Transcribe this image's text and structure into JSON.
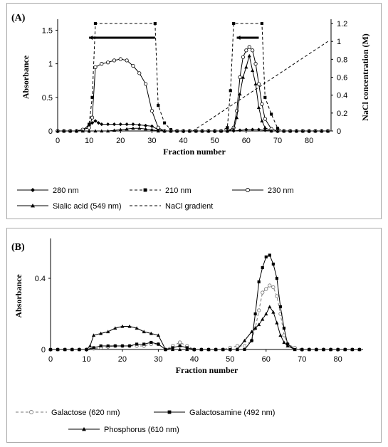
{
  "chart_data": [
    {
      "type": "line",
      "panel_label": "(A)",
      "xlabel": "Fraction number",
      "ylabel": "Absorbance",
      "y2label": "NaCl concentration (M)",
      "xlim": [
        0,
        87
      ],
      "xticks": [
        0,
        10,
        20,
        30,
        40,
        50,
        60,
        70,
        80
      ],
      "ylim": [
        0,
        1.6
      ],
      "yticks": [
        0,
        0.5,
        1,
        1.5
      ],
      "ytick_labels": [
        "0",
        "0.5",
        "1",
        "1.5"
      ],
      "y2lim": [
        0,
        1.2
      ],
      "y2ticks": [
        0,
        0.2,
        0.4,
        0.6,
        0.8,
        1,
        1.2
      ],
      "y2tick_labels": [
        "0",
        "0.2",
        "0.4",
        "0.6",
        "0.8",
        "1",
        "1.2"
      ],
      "grid": false,
      "legend_position": "bottom",
      "pooled_fractions": [
        [
          10,
          31
        ],
        [
          57,
          64
        ]
      ],
      "series": [
        {
          "name": "280 nm",
          "style": "solid",
          "marker": "diamond",
          "color": "#000000",
          "x": [
            0,
            2,
            4,
            6,
            8,
            10,
            11,
            12,
            13,
            14,
            16,
            18,
            20,
            22,
            24,
            26,
            28,
            30,
            32,
            34,
            36,
            38,
            40,
            42,
            44,
            46,
            48,
            50,
            52,
            54,
            56,
            58,
            60,
            62,
            64,
            66,
            68,
            70,
            72,
            74,
            76,
            78,
            80,
            82,
            84,
            86
          ],
          "y": [
            0,
            0,
            0,
            0,
            0.02,
            0.08,
            0.12,
            0.15,
            0.12,
            0.1,
            0.1,
            0.1,
            0.1,
            0.1,
            0.1,
            0.09,
            0.08,
            0.07,
            0.02,
            0,
            0,
            0,
            0,
            0,
            0,
            0,
            0,
            0,
            0,
            0,
            0,
            0.01,
            0.02,
            0.02,
            0.02,
            0.01,
            0,
            0,
            0,
            0,
            0,
            0,
            0,
            0,
            0,
            0
          ]
        },
        {
          "name": "210 nm",
          "style": "dashed",
          "marker": "square",
          "color": "#000000",
          "x": [
            0,
            2,
            4,
            6,
            8,
            10,
            11,
            12,
            31,
            32,
            34,
            36,
            38,
            40,
            42,
            44,
            46,
            48,
            50,
            52,
            54,
            55,
            56,
            65,
            66,
            68,
            70,
            72,
            74,
            76,
            78,
            80,
            82,
            84,
            86
          ],
          "y": [
            0,
            0,
            0,
            0,
            0,
            0.1,
            0.5,
            1.6,
            1.6,
            0.38,
            0.12,
            0.02,
            0,
            0,
            0,
            0,
            0,
            0,
            0,
            0,
            0.05,
            0.6,
            1.6,
            1.6,
            0.5,
            0.25,
            0.04,
            0,
            0,
            0,
            0,
            0,
            0,
            0,
            0
          ]
        },
        {
          "name": "230 nm",
          "style": "solid",
          "marker": "circle",
          "color": "#000000",
          "x": [
            0,
            2,
            4,
            6,
            8,
            10,
            11,
            12,
            14,
            16,
            18,
            20,
            22,
            24,
            26,
            28,
            30,
            32,
            34,
            36,
            38,
            40,
            42,
            44,
            46,
            48,
            50,
            52,
            54,
            56,
            57,
            58,
            59,
            60,
            61,
            62,
            63,
            64,
            65,
            66,
            68,
            70,
            72,
            74,
            76,
            78,
            80,
            82,
            84,
            86
          ],
          "y": [
            0,
            0,
            0,
            0,
            0.02,
            0.05,
            0.2,
            0.95,
            1.0,
            1.02,
            1.05,
            1.07,
            1.05,
            0.97,
            0.86,
            0.7,
            0.3,
            0.05,
            0,
            0,
            0,
            0,
            0,
            0,
            0,
            0,
            0,
            0,
            0,
            0.05,
            0.3,
            0.8,
            1.1,
            1.2,
            1.25,
            1.2,
            1.0,
            0.7,
            0.4,
            0.18,
            0.03,
            0,
            0,
            0,
            0,
            0,
            0,
            0,
            0,
            0
          ]
        },
        {
          "name": "Sialic acid (549 nm)",
          "style": "solid",
          "marker": "triangle",
          "color": "#000000",
          "x": [
            0,
            2,
            4,
            6,
            8,
            10,
            12,
            14,
            16,
            18,
            20,
            22,
            24,
            26,
            28,
            30,
            32,
            34,
            36,
            38,
            40,
            42,
            44,
            46,
            48,
            50,
            52,
            54,
            56,
            57,
            58,
            59,
            60,
            61,
            62,
            63,
            64,
            65,
            66,
            68,
            70,
            72,
            74,
            76,
            78,
            80,
            82,
            84,
            86
          ],
          "y": [
            0,
            0,
            0,
            0,
            0,
            0,
            0,
            0,
            0,
            0.01,
            0.02,
            0.03,
            0.04,
            0.04,
            0.03,
            0.02,
            0,
            0,
            0,
            0,
            0,
            0,
            0,
            0,
            0,
            0,
            0,
            0,
            0.02,
            0.2,
            0.55,
            0.8,
            0.95,
            1.12,
            0.9,
            0.7,
            0.35,
            0.15,
            0.05,
            0,
            0,
            0,
            0,
            0,
            0,
            0,
            0,
            0,
            0
          ]
        },
        {
          "name": "NaCl gradient",
          "style": "dashed",
          "marker": "none",
          "color": "#000000",
          "axis": "right",
          "x": [
            43,
            86
          ],
          "y": [
            0,
            1.0
          ]
        }
      ]
    },
    {
      "type": "line",
      "panel_label": "(B)",
      "xlabel": "Fraction number",
      "ylabel": "Absorbance",
      "xlim": [
        0,
        87
      ],
      "xticks": [
        0,
        10,
        20,
        30,
        40,
        50,
        60,
        70,
        80
      ],
      "ylim": [
        0,
        0.6
      ],
      "yticks": [
        0,
        0.4
      ],
      "ytick_labels": [
        "0",
        "0.4"
      ],
      "grid": false,
      "legend_position": "bottom",
      "series": [
        {
          "name": "Galactose (620 nm)",
          "style": "dashed",
          "marker": "circle",
          "color": "#777777",
          "x": [
            0,
            2,
            4,
            6,
            8,
            10,
            12,
            14,
            16,
            18,
            20,
            22,
            24,
            26,
            28,
            30,
            32,
            34,
            36,
            38,
            40,
            42,
            44,
            46,
            48,
            50,
            52,
            54,
            56,
            57,
            58,
            59,
            60,
            61,
            62,
            63,
            64,
            65,
            66,
            68,
            70,
            72,
            74,
            76,
            78,
            80,
            82,
            84,
            86
          ],
          "y": [
            0,
            0,
            0,
            0,
            0,
            0,
            0.005,
            0.01,
            0.015,
            0.02,
            0.02,
            0.02,
            0.02,
            0.02,
            0.03,
            0.03,
            0,
            0.02,
            0.04,
            0.02,
            0,
            0,
            0,
            0,
            0,
            0.01,
            0.02,
            0.02,
            0.05,
            0.12,
            0.22,
            0.32,
            0.34,
            0.36,
            0.35,
            0.3,
            0.2,
            0.08,
            0.03,
            0.01,
            0,
            0,
            0,
            0,
            0,
            0,
            0,
            0,
            0
          ]
        },
        {
          "name": "Galactosamine (492 nm)",
          "style": "solid",
          "marker": "square",
          "color": "#000000",
          "x": [
            0,
            2,
            4,
            6,
            8,
            10,
            12,
            14,
            16,
            18,
            20,
            22,
            24,
            26,
            28,
            30,
            32,
            34,
            36,
            38,
            40,
            42,
            44,
            46,
            48,
            50,
            52,
            54,
            56,
            57,
            58,
            59,
            60,
            61,
            62,
            63,
            64,
            65,
            66,
            68,
            70,
            72,
            74,
            76,
            78,
            80,
            82,
            84,
            86
          ],
          "y": [
            0,
            0,
            0,
            0,
            0,
            0,
            0.01,
            0.02,
            0.02,
            0.02,
            0.02,
            0.02,
            0.03,
            0.03,
            0.04,
            0.03,
            0,
            0.01,
            0.02,
            0.01,
            0,
            0,
            0,
            0,
            0,
            0,
            0,
            0,
            0.05,
            0.2,
            0.38,
            0.46,
            0.52,
            0.53,
            0.48,
            0.4,
            0.24,
            0.12,
            0.03,
            0,
            0,
            0,
            0,
            0,
            0,
            0,
            0,
            0,
            0
          ]
        },
        {
          "name": "Phosphorus (610 nm)",
          "style": "solid",
          "marker": "triangle",
          "color": "#000000",
          "x": [
            0,
            2,
            4,
            6,
            8,
            10,
            11,
            12,
            14,
            16,
            18,
            20,
            22,
            24,
            26,
            28,
            30,
            32,
            34,
            36,
            38,
            40,
            42,
            44,
            46,
            48,
            50,
            52,
            54,
            56,
            57,
            58,
            59,
            60,
            61,
            62,
            63,
            64,
            65,
            66,
            68,
            70,
            72,
            74,
            76,
            78,
            80,
            82,
            84,
            86
          ],
          "y": [
            0,
            0,
            0,
            0,
            0,
            0,
            0.02,
            0.08,
            0.09,
            0.1,
            0.12,
            0.13,
            0.13,
            0.12,
            0.1,
            0.09,
            0.08,
            0,
            0,
            0,
            0,
            0,
            0,
            0,
            0,
            0,
            0,
            0,
            0.05,
            0.1,
            0.12,
            0.14,
            0.17,
            0.2,
            0.24,
            0.21,
            0.15,
            0.08,
            0.04,
            0.02,
            0,
            0,
            0,
            0,
            0,
            0,
            0,
            0,
            0,
            0
          ]
        }
      ]
    }
  ]
}
